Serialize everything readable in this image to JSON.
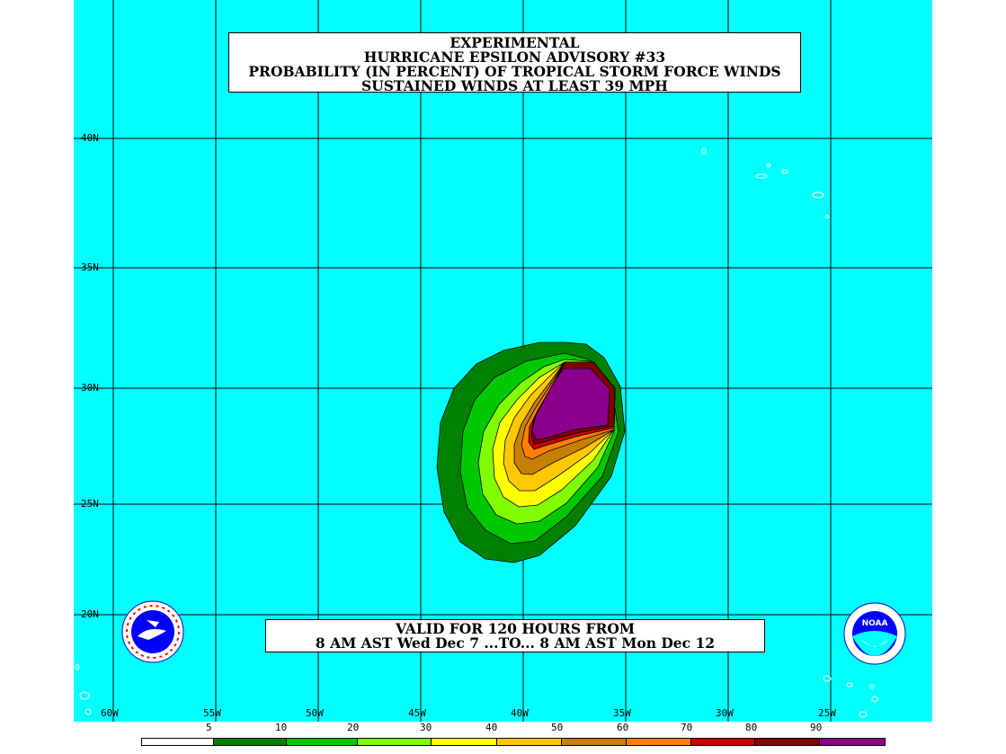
{
  "title": {
    "line1": "EXPERIMENTAL",
    "line2": "HURRICANE EPSILON ADVISORY #33",
    "line3": "PROBABILITY (IN PERCENT) OF TROPICAL STORM FORCE WINDS",
    "line4": "SUSTAINED WINDS AT LEAST 39 MPH"
  },
  "valid": {
    "line1": "VALID FOR 120 HOURS FROM",
    "line2": "8 AM AST Wed Dec 7 ...TO... 8 AM AST Mon Dec 12"
  },
  "latitudes": [
    "40N",
    "35N",
    "30N",
    "25N",
    "20N"
  ],
  "longitudes": [
    "60W",
    "55W",
    "50W",
    "45W",
    "40W",
    "35W",
    "30W",
    "25W"
  ],
  "legend": {
    "ticks": [
      "5",
      "10",
      "20",
      "30",
      "40",
      "50",
      "60",
      "70",
      "80",
      "90"
    ],
    "colors": [
      "#ffffff",
      "#008000",
      "#00c800",
      "#80ff00",
      "#ffff00",
      "#ffc800",
      "#c88000",
      "#ff8000",
      "#c80000",
      "#800000",
      "#8b008b"
    ]
  },
  "colors": {
    "ocean": "#00ffff",
    "grid": "#000000"
  },
  "logos": {
    "left": "nws-logo",
    "right": "noaa-logo",
    "right_text": "NOAA"
  }
}
